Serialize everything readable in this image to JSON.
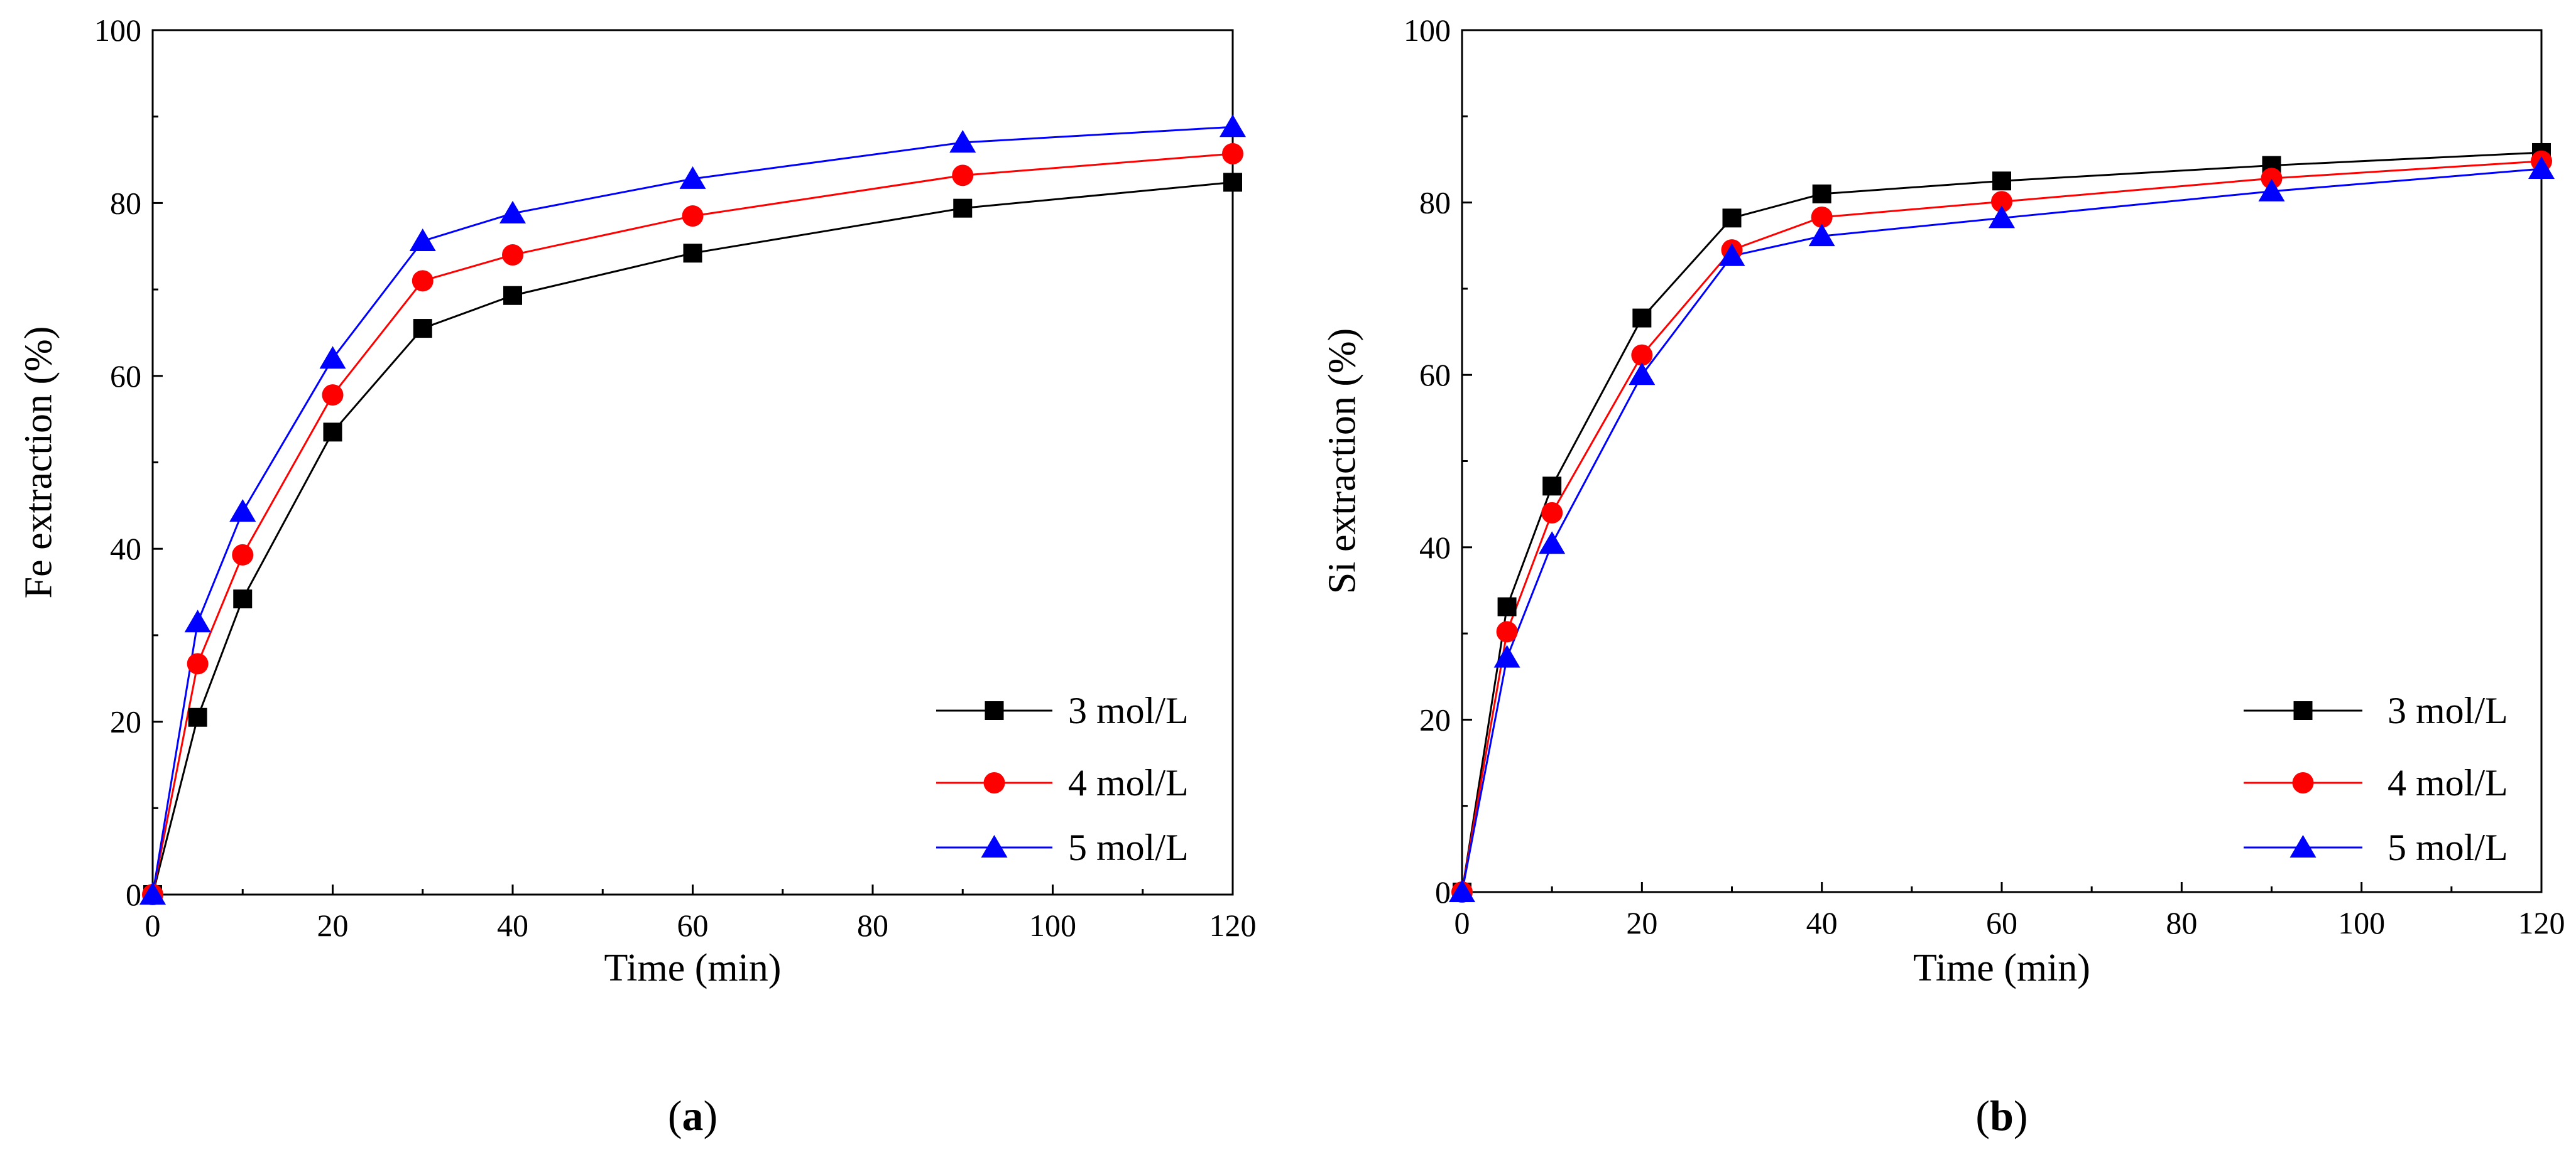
{
  "chart_data": [
    {
      "id": "a",
      "type": "line",
      "panel_label": "a",
      "xlabel": "Time (min)",
      "ylabel": "Fe extraction (%)",
      "xlim": [
        0,
        120
      ],
      "ylim": [
        0,
        100
      ],
      "xticks": [
        0,
        20,
        40,
        60,
        80,
        100,
        120
      ],
      "yticks": [
        0,
        20,
        40,
        60,
        80,
        100
      ],
      "grid": false,
      "legend_position": "bottom-right",
      "x": [
        0,
        5,
        10,
        20,
        30,
        40,
        60,
        90,
        120
      ],
      "series": [
        {
          "name": "3 mol/L",
          "marker": "square",
          "color": "#000000",
          "values": [
            0,
            20.5,
            34.2,
            53.5,
            65.5,
            69.3,
            74.2,
            79.4,
            82.4
          ]
        },
        {
          "name": "4 mol/L",
          "marker": "circle",
          "color": "#ff0000",
          "values": [
            0,
            26.7,
            39.3,
            57.8,
            71.0,
            74.0,
            78.5,
            83.2,
            85.7
          ]
        },
        {
          "name": "5 mol/L",
          "marker": "triangle",
          "color": "#0000ff",
          "values": [
            0,
            31.5,
            44.3,
            62.0,
            75.6,
            78.8,
            82.8,
            87.0,
            88.8
          ]
        }
      ]
    },
    {
      "id": "b",
      "type": "line",
      "panel_label": "b",
      "xlabel": "Time (min)",
      "ylabel": "Si extraction (%)",
      "xlim": [
        0,
        120
      ],
      "ylim": [
        0,
        100
      ],
      "xticks": [
        0,
        20,
        40,
        60,
        80,
        100,
        120
      ],
      "yticks": [
        0,
        20,
        40,
        60,
        80,
        100
      ],
      "grid": false,
      "legend_position": "bottom-right",
      "x": [
        0,
        5,
        10,
        20,
        30,
        40,
        60,
        90,
        120
      ],
      "series": [
        {
          "name": "3 mol/L",
          "marker": "square",
          "color": "#000000",
          "values": [
            0,
            33.1,
            47.1,
            66.6,
            78.2,
            81.0,
            82.5,
            84.3,
            85.8
          ]
        },
        {
          "name": "4 mol/L",
          "marker": "circle",
          "color": "#ff0000",
          "values": [
            0,
            30.2,
            44.0,
            62.3,
            74.5,
            78.3,
            80.1,
            82.8,
            84.8
          ]
        },
        {
          "name": "5 mol/L",
          "marker": "triangle",
          "color": "#0000ff",
          "values": [
            0,
            27.2,
            40.4,
            60.0,
            73.8,
            76.1,
            78.2,
            81.3,
            83.9
          ]
        }
      ]
    }
  ]
}
